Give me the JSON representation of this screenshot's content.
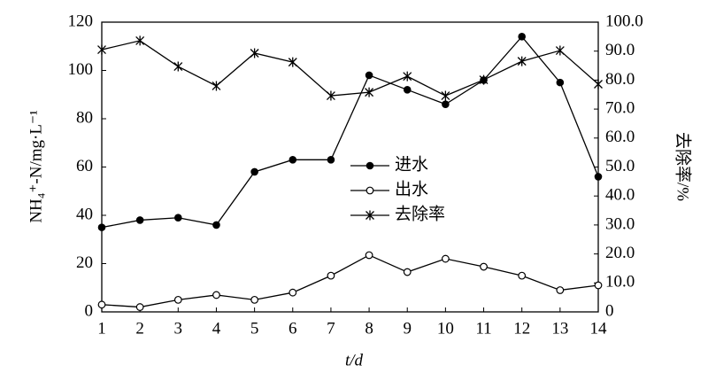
{
  "chart_data": {
    "type": "line",
    "xlabel": "t/d",
    "ylabel": "NH₄⁺-N/mg·L⁻¹",
    "y2label": "去除率/%",
    "x": [
      1,
      2,
      3,
      4,
      5,
      6,
      7,
      8,
      9,
      10,
      11,
      12,
      13,
      14
    ],
    "xlim": [
      1,
      14
    ],
    "xticks": [
      1,
      2,
      3,
      4,
      5,
      6,
      7,
      8,
      9,
      10,
      11,
      12,
      13,
      14
    ],
    "ylim": [
      0,
      120
    ],
    "yticks": [
      0,
      20,
      40,
      60,
      80,
      100,
      120
    ],
    "y2lim": [
      0,
      100
    ],
    "y2ticks": [
      {
        "value": 0,
        "label": "0"
      },
      {
        "value": 10,
        "label": "10.0"
      },
      {
        "value": 20,
        "label": "20.0"
      },
      {
        "value": 30,
        "label": "30.0"
      },
      {
        "value": 40,
        "label": "40.0"
      },
      {
        "value": 50,
        "label": "50.0"
      },
      {
        "value": 60,
        "label": "60.0"
      },
      {
        "value": 70,
        "label": "70.0"
      },
      {
        "value": 80,
        "label": "80.0"
      },
      {
        "value": 90,
        "label": "90.0"
      },
      {
        "value": 100,
        "label": "100.0"
      }
    ],
    "series": [
      {
        "name": "进水",
        "color": "#000000",
        "marker": "filled-circle",
        "values": [
          35,
          38,
          39,
          36,
          58,
          63,
          63,
          98,
          92,
          86,
          96,
          114,
          95,
          56
        ]
      },
      {
        "name": "出水",
        "color": "#000000",
        "marker": "open-circle",
        "values": [
          3,
          2,
          5,
          7,
          5,
          8,
          15,
          23.5,
          16.5,
          22,
          18.7,
          15,
          9,
          11
        ]
      },
      {
        "name": "去除率",
        "color": "#000000",
        "marker": "asterisk",
        "axis": "y2",
        "values": [
          90.5,
          93.6,
          84.7,
          78,
          89.3,
          86.2,
          74.6,
          75.8,
          81.3,
          74.6,
          80.1,
          86.5,
          90.2,
          78.6
        ]
      }
    ]
  }
}
